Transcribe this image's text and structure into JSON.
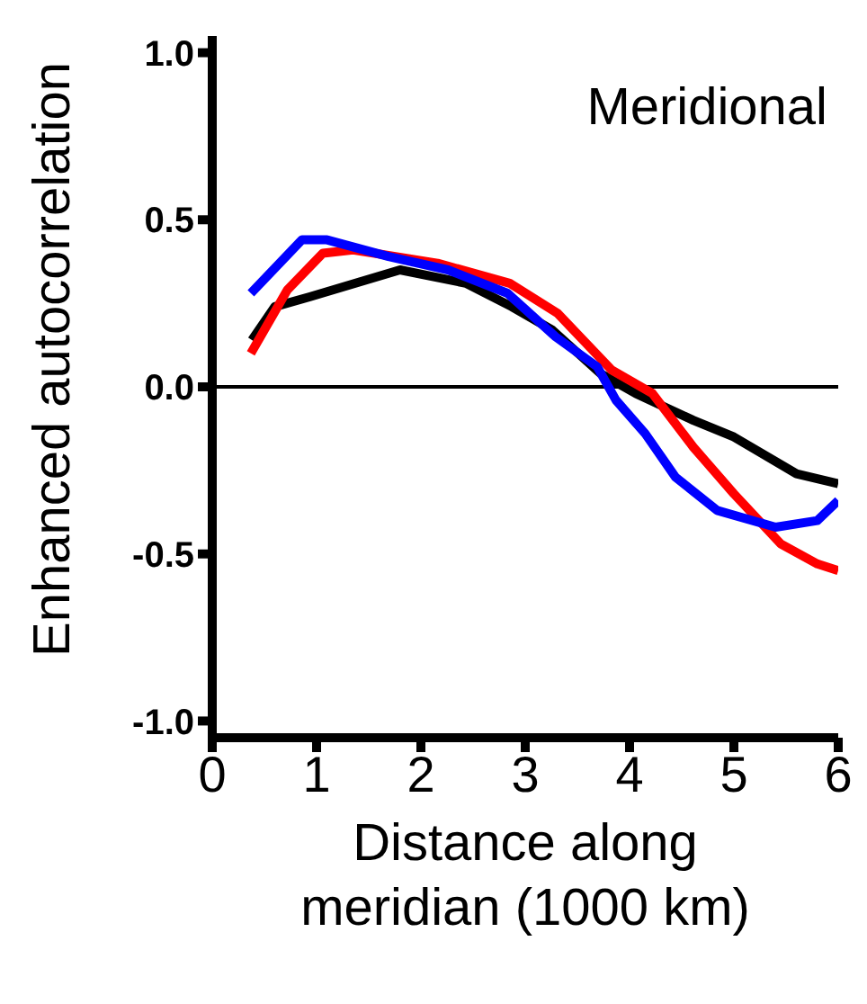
{
  "chart_data": {
    "type": "line",
    "xlabel": "Distance along meridian (1000 km)",
    "ylabel": "Enhanced autocorrelation",
    "annotations": [
      "Meridional"
    ],
    "xlim": [
      0,
      6
    ],
    "xticks": [
      0,
      1,
      2,
      3,
      4,
      5,
      6
    ],
    "ylim": [
      -1.05,
      1.05
    ],
    "yticks": [
      {
        "value": 1,
        "label": "1.0"
      },
      {
        "value": 0.5,
        "label": "0.5"
      },
      {
        "value": 0,
        "label": "0.0"
      },
      {
        "value": -0.5,
        "label": "-0.5"
      },
      {
        "value": -1,
        "label": "-1.0"
      }
    ],
    "ref_lines": [
      {
        "axis": "y",
        "value": 0,
        "color": "#000000"
      }
    ],
    "grid": false,
    "legend": false,
    "marker": "none",
    "line_style": "solid",
    "series": [
      {
        "color": "#000000",
        "x": [
          0.38,
          0.6,
          0.94,
          1.8,
          2.43,
          2.87,
          3.26,
          3.72,
          4.06,
          4.61,
          5.0,
          5.6,
          6.0
        ],
        "values": [
          0.14,
          0.24,
          0.27,
          0.35,
          0.31,
          0.24,
          0.17,
          0.04,
          -0.02,
          -0.1,
          -0.15,
          -0.26,
          -0.29
        ]
      },
      {
        "color": "#ff0000",
        "x": [
          0.37,
          0.72,
          1.06,
          1.35,
          2.16,
          2.85,
          3.31,
          3.83,
          4.22,
          4.61,
          5.0,
          5.45,
          5.8,
          6.0
        ],
        "values": [
          0.1,
          0.29,
          0.4,
          0.41,
          0.37,
          0.31,
          0.22,
          0.05,
          -0.02,
          -0.18,
          -0.32,
          -0.47,
          -0.53,
          -0.55
        ]
      },
      {
        "color": "#0000ff",
        "x": [
          0.37,
          0.86,
          1.1,
          1.69,
          2.26,
          2.83,
          3.29,
          3.69,
          3.87,
          4.15,
          4.44,
          4.84,
          5.4,
          5.8,
          6.0
        ],
        "values": [
          0.28,
          0.44,
          0.44,
          0.39,
          0.35,
          0.28,
          0.15,
          0.06,
          -0.04,
          -0.14,
          -0.27,
          -0.37,
          -0.42,
          -0.4,
          -0.34
        ]
      }
    ]
  }
}
